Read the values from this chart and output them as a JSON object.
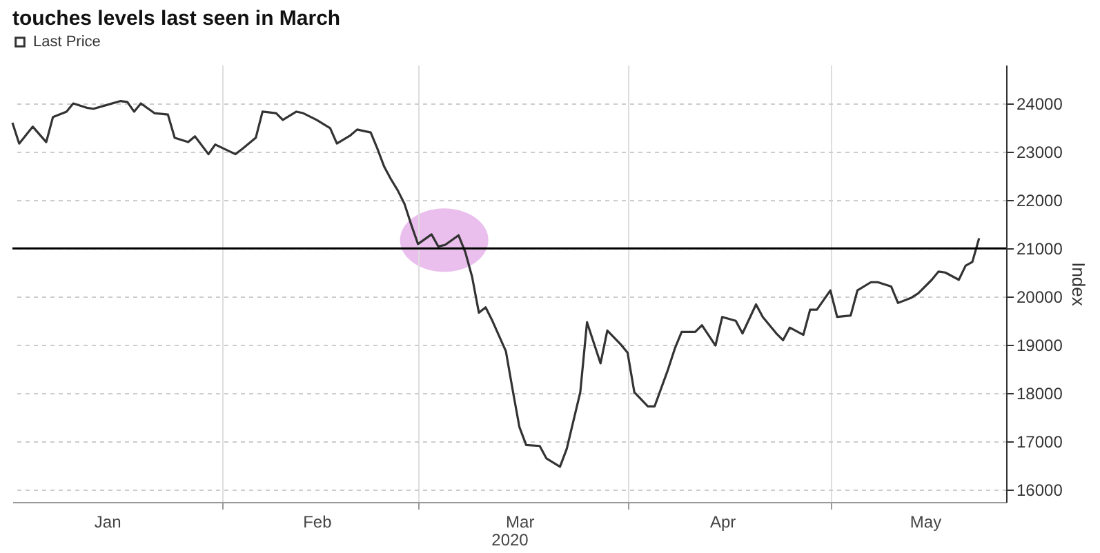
{
  "chart_data": {
    "type": "line",
    "title": "touches levels last seen in March",
    "xlabel": "2020",
    "ylabel": "Index",
    "legend": "top left",
    "grid": true,
    "xlim": [
      "2020-01-01",
      "2020-05-27"
    ],
    "xticks": [
      {
        "value": "2020-01-15",
        "label": "Jan"
      },
      {
        "value": "2020-02-01",
        "label": null
      },
      {
        "value": "2020-02-15",
        "label": "Feb"
      },
      {
        "value": "2020-03-01",
        "label": null
      },
      {
        "value": "2020-03-16",
        "label": "Mar"
      },
      {
        "value": "2020-04-01",
        "label": null
      },
      {
        "value": "2020-04-15",
        "label": "Apr"
      },
      {
        "value": "2020-05-01",
        "label": null
      },
      {
        "value": "2020-05-15",
        "label": "May"
      }
    ],
    "ylim": [
      15750,
      24800
    ],
    "yticks": [
      16000,
      17000,
      18000,
      19000,
      20000,
      21000,
      22000,
      23000,
      24000
    ],
    "ref_lines": [
      {
        "axis": "y",
        "value": 21000,
        "label": null,
        "color": "#000000"
      }
    ],
    "x": [
      "2020-01-01",
      "2020-01-02",
      "2020-01-04",
      "2020-01-06",
      "2020-01-07",
      "2020-01-09",
      "2020-01-10",
      "2020-01-12",
      "2020-01-13",
      "2020-01-15",
      "2020-01-17",
      "2020-01-18",
      "2020-01-19",
      "2020-01-20",
      "2020-01-22",
      "2020-01-24",
      "2020-01-25",
      "2020-01-27",
      "2020-01-28",
      "2020-01-30",
      "2020-01-31",
      "2020-02-03",
      "2020-02-04",
      "2020-02-06",
      "2020-02-07",
      "2020-02-09",
      "2020-02-10",
      "2020-02-12",
      "2020-02-13",
      "2020-02-15",
      "2020-02-17",
      "2020-02-18",
      "2020-02-20",
      "2020-02-21",
      "2020-02-23",
      "2020-02-24",
      "2020-02-25",
      "2020-02-26",
      "2020-02-27",
      "2020-02-28",
      "2020-02-29",
      "2020-03-01",
      "2020-03-03",
      "2020-03-04",
      "2020-03-05",
      "2020-03-07",
      "2020-03-08",
      "2020-03-09",
      "2020-03-10",
      "2020-03-11",
      "2020-03-12",
      "2020-03-14",
      "2020-03-15",
      "2020-03-16",
      "2020-03-17",
      "2020-03-19",
      "2020-03-20",
      "2020-03-22",
      "2020-03-23",
      "2020-03-25",
      "2020-03-26",
      "2020-03-28",
      "2020-03-29",
      "2020-03-31",
      "2020-04-01",
      "2020-04-02",
      "2020-04-04",
      "2020-04-05",
      "2020-04-07",
      "2020-04-08",
      "2020-04-09",
      "2020-04-11",
      "2020-04-12",
      "2020-04-14",
      "2020-04-15",
      "2020-04-17",
      "2020-04-18",
      "2020-04-20",
      "2020-04-21",
      "2020-04-23",
      "2020-04-24",
      "2020-04-25",
      "2020-04-27",
      "2020-04-28",
      "2020-04-29",
      "2020-05-01",
      "2020-05-02",
      "2020-05-04",
      "2020-05-05",
      "2020-05-07",
      "2020-05-08",
      "2020-05-10",
      "2020-05-11",
      "2020-05-13",
      "2020-05-14",
      "2020-05-16",
      "2020-05-17",
      "2020-05-18",
      "2020-05-20",
      "2020-05-21",
      "2020-05-22",
      "2020-05-23"
    ],
    "series": [
      {
        "name": "Last Price",
        "color": "#333333",
        "values": [
          23600,
          23170,
          23520,
          23200,
          23720,
          23830,
          24000,
          23910,
          23890,
          23970,
          24050,
          24030,
          23830,
          24000,
          23800,
          23770,
          23290,
          23200,
          23320,
          22950,
          23150,
          22950,
          23060,
          23290,
          23830,
          23800,
          23660,
          23830,
          23800,
          23660,
          23490,
          23170,
          23340,
          23460,
          23400,
          23060,
          22690,
          22430,
          22200,
          21920,
          21490,
          21090,
          21290,
          21040,
          21070,
          21270,
          20920,
          20410,
          19670,
          19780,
          19500,
          18870,
          18070,
          17300,
          16930,
          16910,
          16650,
          16480,
          16850,
          18020,
          19470,
          18620,
          19300,
          19010,
          18840,
          18020,
          17730,
          17730,
          18500,
          18930,
          19270,
          19270,
          19410,
          18990,
          19580,
          19500,
          19240,
          19840,
          19580,
          19240,
          19100,
          19360,
          19210,
          19730,
          19730,
          20130,
          19580,
          19610,
          20130,
          20300,
          20300,
          20210,
          19870,
          19980,
          20070,
          20350,
          20520,
          20500,
          20350,
          20640,
          20720,
          21210
        ]
      }
    ]
  }
}
